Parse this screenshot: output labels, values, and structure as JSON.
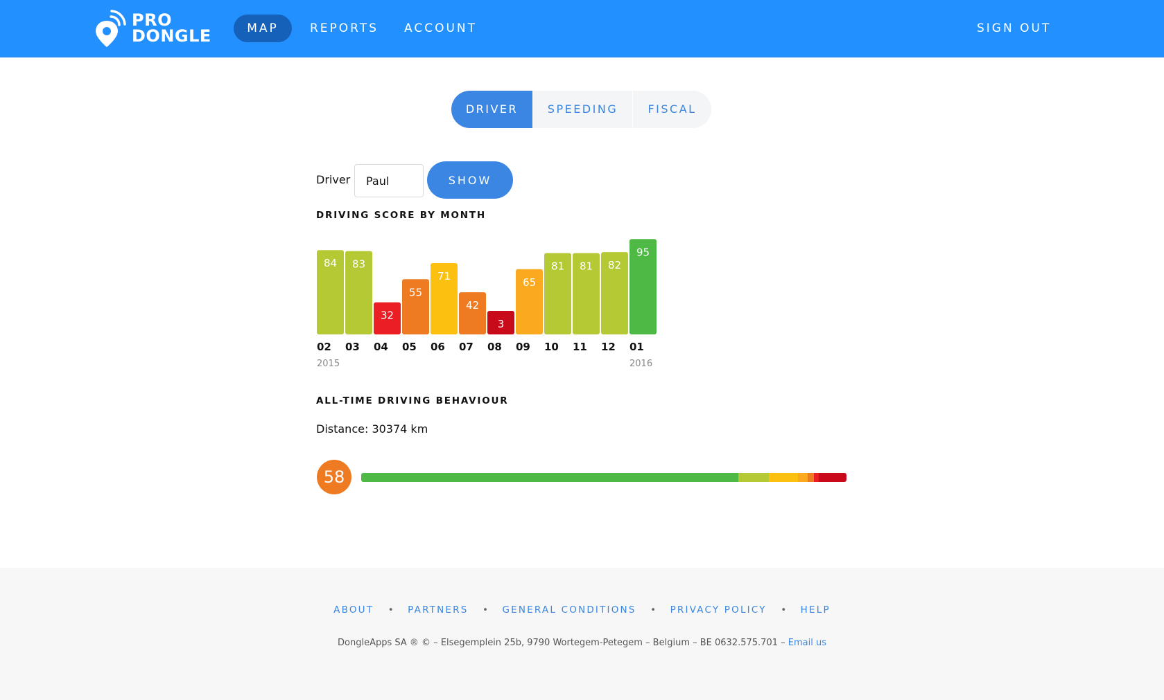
{
  "header": {
    "logo_line1": "PRO",
    "logo_line2": "DONGLE",
    "nav": {
      "map": "MAP",
      "reports": "REPORTS",
      "account": "ACCOUNT"
    },
    "sign_out": "SIGN OUT",
    "bg_color": "#2291ff"
  },
  "tabs": {
    "driver": "DRIVER",
    "speeding": "SPEEDING",
    "fiscal": "FISCAL",
    "active": "DRIVER"
  },
  "driver_form": {
    "label": "Driver :",
    "value": "Paul",
    "button": "SHOW"
  },
  "score_section": {
    "title": "DRIVING SCORE BY MONTH"
  },
  "chart_data": {
    "type": "bar",
    "title": "DRIVING SCORE BY MONTH",
    "categories": [
      "02",
      "03",
      "04",
      "05",
      "06",
      "07",
      "08",
      "09",
      "10",
      "11",
      "12",
      "01"
    ],
    "values": [
      84,
      83,
      32,
      55,
      71,
      42,
      3,
      65,
      81,
      81,
      82,
      95
    ],
    "colors": [
      "#b5c934",
      "#b5c934",
      "#ea1e23",
      "#ee7a22",
      "#fcc010",
      "#ee7a22",
      "#c90a1a",
      "#fba91f",
      "#b5c934",
      "#b5c934",
      "#b5c934",
      "#4fb946"
    ],
    "year_labels": [
      {
        "index": 0,
        "label": "2015"
      },
      {
        "index": 11,
        "label": "2016"
      }
    ],
    "ylim": [
      0,
      100
    ],
    "grid": false,
    "legend": "none"
  },
  "behaviour": {
    "title": "ALL-TIME DRIVING BEHAVIOUR",
    "distance": "Distance: 30374 km",
    "score": "58",
    "score_color": "#ee7a22",
    "segments": [
      {
        "color": "#4fb946",
        "fraction": 0.777
      },
      {
        "color": "#b5c934",
        "fraction": 0.063
      },
      {
        "color": "#fcc010",
        "fraction": 0.06
      },
      {
        "color": "#fba91f",
        "fraction": 0.02
      },
      {
        "color": "#ee7a22",
        "fraction": 0.013
      },
      {
        "color": "#ea1e23",
        "fraction": 0.01
      },
      {
        "color": "#c90a1a",
        "fraction": 0.057
      }
    ]
  },
  "footer": {
    "links": [
      "ABOUT",
      "PARTNERS",
      "GENERAL CONDITIONS",
      "PRIVACY POLICY",
      "HELP"
    ],
    "separator": "•",
    "copyright": "DongleApps SA ® © – Elsegemplein 25b, 9790 Wortegem-Petegem – Belgium – BE 0632.575.701 – ",
    "email_link": "Email us"
  }
}
